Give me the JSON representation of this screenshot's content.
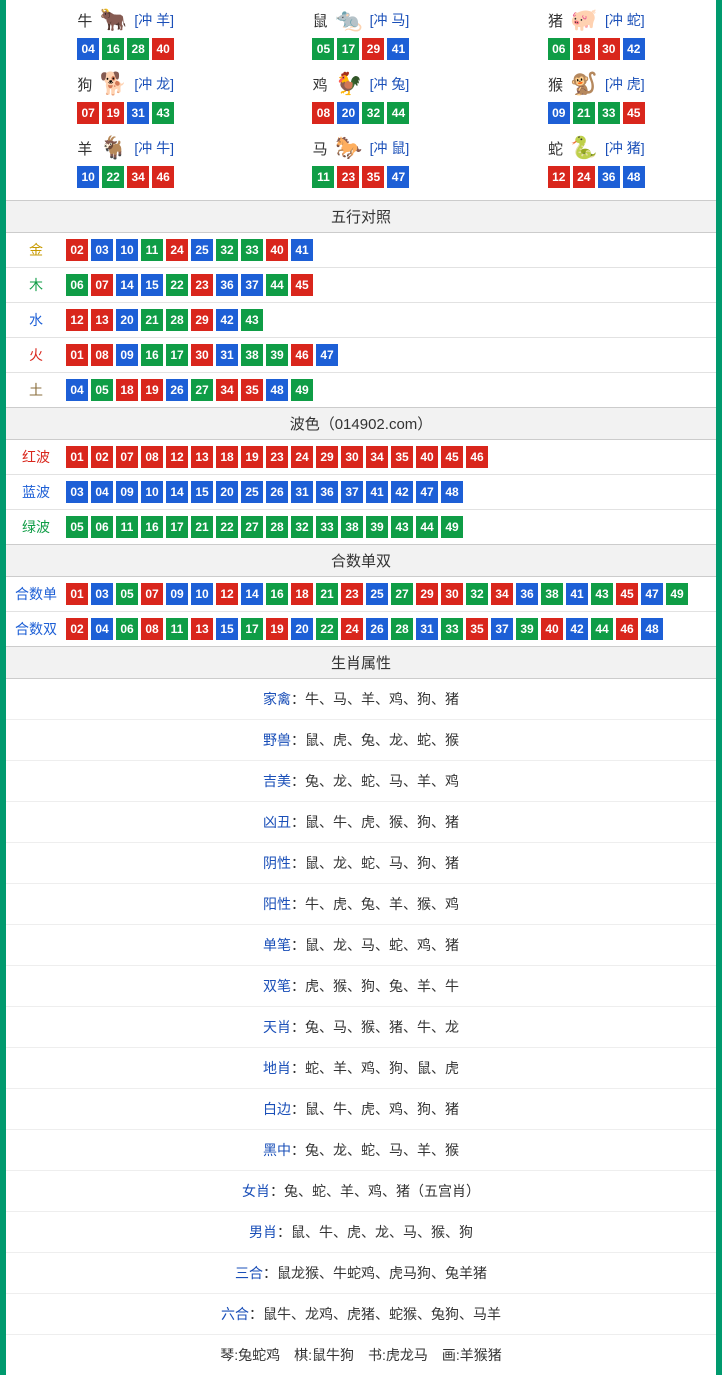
{
  "colors": {
    "red": "#d9261c",
    "blue": "#1d5fd6",
    "green": "#0f9d46",
    "labelGold": "#c79a00",
    "labelGreen": "#0f9d46",
    "labelBlue": "#1d5fd6",
    "labelRed": "#d9261c",
    "labelBrown": "#8a6d3b",
    "clash": "#1a4fb8",
    "attrLabel": "#1a4fb8"
  },
  "zodiac": [
    {
      "name": "牛",
      "emoji": "🐂",
      "clash": "[冲 羊]",
      "nums": [
        "04",
        "16",
        "28",
        "40"
      ],
      "cols": [
        "blue",
        "green",
        "green",
        "red"
      ]
    },
    {
      "name": "鼠",
      "emoji": "🐀",
      "clash": "[冲 马]",
      "nums": [
        "05",
        "17",
        "29",
        "41"
      ],
      "cols": [
        "green",
        "green",
        "red",
        "blue"
      ]
    },
    {
      "name": "猪",
      "emoji": "🐖",
      "clash": "[冲 蛇]",
      "nums": [
        "06",
        "18",
        "30",
        "42"
      ],
      "cols": [
        "green",
        "red",
        "red",
        "blue"
      ]
    },
    {
      "name": "狗",
      "emoji": "🐕",
      "clash": "[冲 龙]",
      "nums": [
        "07",
        "19",
        "31",
        "43"
      ],
      "cols": [
        "red",
        "red",
        "blue",
        "green"
      ]
    },
    {
      "name": "鸡",
      "emoji": "🐓",
      "clash": "[冲 兔]",
      "nums": [
        "08",
        "20",
        "32",
        "44"
      ],
      "cols": [
        "red",
        "blue",
        "green",
        "green"
      ]
    },
    {
      "name": "猴",
      "emoji": "🐒",
      "clash": "[冲 虎]",
      "nums": [
        "09",
        "21",
        "33",
        "45"
      ],
      "cols": [
        "blue",
        "green",
        "green",
        "red"
      ]
    },
    {
      "name": "羊",
      "emoji": "🐐",
      "clash": "[冲 牛]",
      "nums": [
        "10",
        "22",
        "34",
        "46"
      ],
      "cols": [
        "blue",
        "green",
        "red",
        "red"
      ]
    },
    {
      "name": "马",
      "emoji": "🐎",
      "clash": "[冲 鼠]",
      "nums": [
        "11",
        "23",
        "35",
        "47"
      ],
      "cols": [
        "green",
        "red",
        "red",
        "blue"
      ]
    },
    {
      "name": "蛇",
      "emoji": "🐍",
      "clash": "[冲 猪]",
      "nums": [
        "12",
        "24",
        "36",
        "48"
      ],
      "cols": [
        "red",
        "red",
        "blue",
        "blue"
      ]
    }
  ],
  "wuxing": {
    "title": "五行对照",
    "rows": [
      {
        "label": "金",
        "labelColor": "labelGold",
        "nums": [
          "02",
          "03",
          "10",
          "11",
          "24",
          "25",
          "32",
          "33",
          "40",
          "41"
        ],
        "cols": [
          "red",
          "blue",
          "blue",
          "green",
          "red",
          "blue",
          "green",
          "green",
          "red",
          "blue"
        ]
      },
      {
        "label": "木",
        "labelColor": "labelGreen",
        "nums": [
          "06",
          "07",
          "14",
          "15",
          "22",
          "23",
          "36",
          "37",
          "44",
          "45"
        ],
        "cols": [
          "green",
          "red",
          "blue",
          "blue",
          "green",
          "red",
          "blue",
          "blue",
          "green",
          "red"
        ]
      },
      {
        "label": "水",
        "labelColor": "labelBlue",
        "nums": [
          "12",
          "13",
          "20",
          "21",
          "28",
          "29",
          "42",
          "43"
        ],
        "cols": [
          "red",
          "red",
          "blue",
          "green",
          "green",
          "red",
          "blue",
          "green"
        ]
      },
      {
        "label": "火",
        "labelColor": "labelRed",
        "nums": [
          "01",
          "08",
          "09",
          "16",
          "17",
          "30",
          "31",
          "38",
          "39",
          "46",
          "47"
        ],
        "cols": [
          "red",
          "red",
          "blue",
          "green",
          "green",
          "red",
          "blue",
          "green",
          "green",
          "red",
          "blue"
        ]
      },
      {
        "label": "土",
        "labelColor": "labelBrown",
        "nums": [
          "04",
          "05",
          "18",
          "19",
          "26",
          "27",
          "34",
          "35",
          "48",
          "49"
        ],
        "cols": [
          "blue",
          "green",
          "red",
          "red",
          "blue",
          "green",
          "red",
          "red",
          "blue",
          "green"
        ]
      }
    ]
  },
  "bose": {
    "title": "波色（014902.com）",
    "rows": [
      {
        "label": "红波",
        "labelColor": "labelRed",
        "nums": [
          "01",
          "02",
          "07",
          "08",
          "12",
          "13",
          "18",
          "19",
          "23",
          "24",
          "29",
          "30",
          "34",
          "35",
          "40",
          "45",
          "46"
        ],
        "fill": "red"
      },
      {
        "label": "蓝波",
        "labelColor": "labelBlue",
        "nums": [
          "03",
          "04",
          "09",
          "10",
          "14",
          "15",
          "20",
          "25",
          "26",
          "31",
          "36",
          "37",
          "41",
          "42",
          "47",
          "48"
        ],
        "fill": "blue"
      },
      {
        "label": "绿波",
        "labelColor": "labelGreen",
        "nums": [
          "05",
          "06",
          "11",
          "16",
          "17",
          "21",
          "22",
          "27",
          "28",
          "32",
          "33",
          "38",
          "39",
          "43",
          "44",
          "49"
        ],
        "fill": "green"
      }
    ]
  },
  "heshu": {
    "title": "合数单双",
    "rows": [
      {
        "label": "合数单",
        "labelColor": "labelBlue",
        "nums": [
          "01",
          "03",
          "05",
          "07",
          "09",
          "10",
          "12",
          "14",
          "16",
          "18",
          "21",
          "23",
          "25",
          "27",
          "29",
          "30",
          "32",
          "34",
          "36",
          "38",
          "41",
          "43",
          "45",
          "47",
          "49"
        ],
        "cols": [
          "red",
          "blue",
          "green",
          "red",
          "blue",
          "blue",
          "red",
          "blue",
          "green",
          "red",
          "green",
          "red",
          "blue",
          "green",
          "red",
          "red",
          "green",
          "red",
          "blue",
          "green",
          "blue",
          "green",
          "red",
          "blue",
          "green"
        ]
      },
      {
        "label": "合数双",
        "labelColor": "labelBlue",
        "nums": [
          "02",
          "04",
          "06",
          "08",
          "11",
          "13",
          "15",
          "17",
          "19",
          "20",
          "22",
          "24",
          "26",
          "28",
          "31",
          "33",
          "35",
          "37",
          "39",
          "40",
          "42",
          "44",
          "46",
          "48"
        ],
        "cols": [
          "red",
          "blue",
          "green",
          "red",
          "green",
          "red",
          "blue",
          "green",
          "red",
          "blue",
          "green",
          "red",
          "blue",
          "green",
          "blue",
          "green",
          "red",
          "blue",
          "green",
          "red",
          "blue",
          "green",
          "red",
          "blue"
        ]
      }
    ]
  },
  "attrs": {
    "title": "生肖属性",
    "rows": [
      {
        "label": "家禽",
        "text": "：牛、马、羊、鸡、狗、猪"
      },
      {
        "label": "野兽",
        "text": "：鼠、虎、兔、龙、蛇、猴"
      },
      {
        "label": "吉美",
        "text": "：兔、龙、蛇、马、羊、鸡"
      },
      {
        "label": "凶丑",
        "text": "：鼠、牛、虎、猴、狗、猪"
      },
      {
        "label": "阴性",
        "text": "：鼠、龙、蛇、马、狗、猪"
      },
      {
        "label": "阳性",
        "text": "：牛、虎、兔、羊、猴、鸡"
      },
      {
        "label": "单笔",
        "text": "：鼠、龙、马、蛇、鸡、猪"
      },
      {
        "label": "双笔",
        "text": "：虎、猴、狗、兔、羊、牛"
      },
      {
        "label": "天肖",
        "text": "：兔、马、猴、猪、牛、龙"
      },
      {
        "label": "地肖",
        "text": "：蛇、羊、鸡、狗、鼠、虎"
      },
      {
        "label": "白边",
        "text": "：鼠、牛、虎、鸡、狗、猪"
      },
      {
        "label": "黑中",
        "text": "：兔、龙、蛇、马、羊、猴"
      },
      {
        "label": "女肖",
        "text": "：兔、蛇、羊、鸡、猪（五宫肖）"
      },
      {
        "label": "男肖",
        "text": "：鼠、牛、虎、龙、马、猴、狗"
      },
      {
        "label": "三合",
        "text": "：鼠龙猴、牛蛇鸡、虎马狗、兔羊猪"
      },
      {
        "label": "六合",
        "text": "：鼠牛、龙鸡、虎猪、蛇猴、兔狗、马羊"
      },
      {
        "label": "",
        "text": "琴:兔蛇鸡　棋:鼠牛狗　书:虎龙马　画:羊猴猪"
      }
    ]
  }
}
